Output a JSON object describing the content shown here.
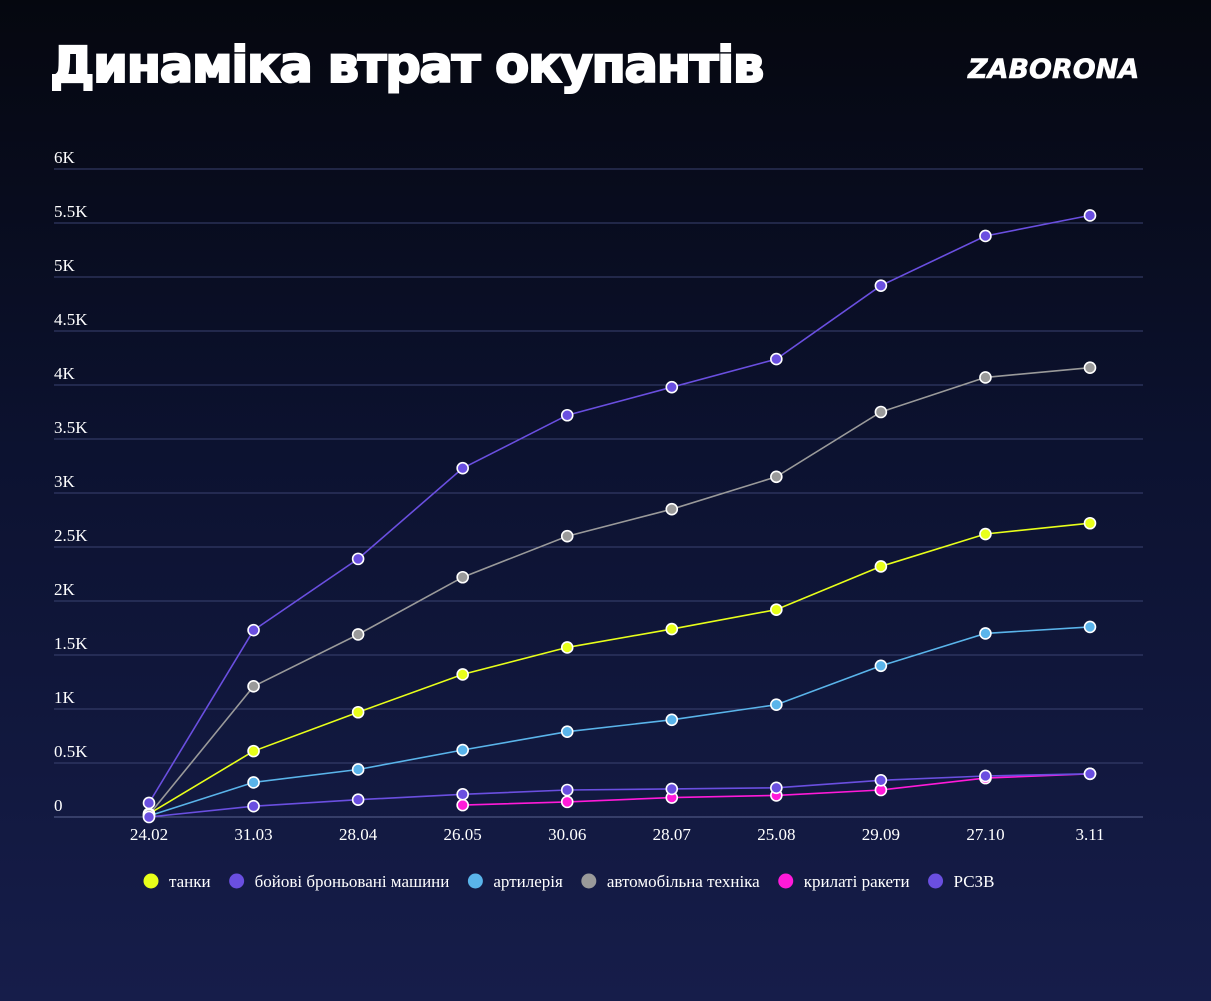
{
  "header": {
    "title": "Динаміка втрат окупантів",
    "logo": "ZABORONA"
  },
  "chart_data": {
    "type": "line",
    "title": "Динаміка втрат окупантів",
    "xlabel": "",
    "ylabel": "",
    "categories": [
      "24.02",
      "31.03",
      "28.04",
      "26.05",
      "30.06",
      "28.07",
      "25.08",
      "29.09",
      "27.10",
      "3.11"
    ],
    "y_ticks": [
      "0",
      "0.5K",
      "1K",
      "1.5K",
      "2K",
      "2.5K",
      "3K",
      "3.5K",
      "4K",
      "4.5K",
      "5K",
      "5.5K",
      "6K"
    ],
    "ylim": [
      0,
      6000
    ],
    "grid": "horizontal",
    "legend_position": "bottom",
    "series": [
      {
        "name": "танки",
        "color": "#e8ff1a",
        "values": [
          30,
          610,
          970,
          1320,
          1570,
          1740,
          1920,
          2320,
          2620,
          2720
        ]
      },
      {
        "name": "бойові броньовані машини",
        "color": "#6a4fe0",
        "values": [
          130,
          1730,
          2390,
          3230,
          3720,
          3980,
          4240,
          4920,
          5380,
          5570
        ]
      },
      {
        "name": "артилерія",
        "color": "#5ab4ea",
        "values": [
          10,
          320,
          440,
          620,
          790,
          900,
          1040,
          1400,
          1700,
          1760
        ]
      },
      {
        "name": "автомобільна техніка",
        "color": "#9a9a9a",
        "values": [
          20,
          1210,
          1690,
          2220,
          2600,
          2850,
          3150,
          3750,
          4070,
          4160
        ]
      },
      {
        "name": "крилаті ракети",
        "color": "#ff1ad9",
        "values": [
          null,
          null,
          null,
          110,
          140,
          180,
          200,
          250,
          360,
          400
        ]
      },
      {
        "name": "РСЗВ",
        "color": "#6a4fe0",
        "values": [
          0,
          100,
          160,
          210,
          250,
          260,
          270,
          340,
          380,
          400
        ]
      }
    ]
  }
}
